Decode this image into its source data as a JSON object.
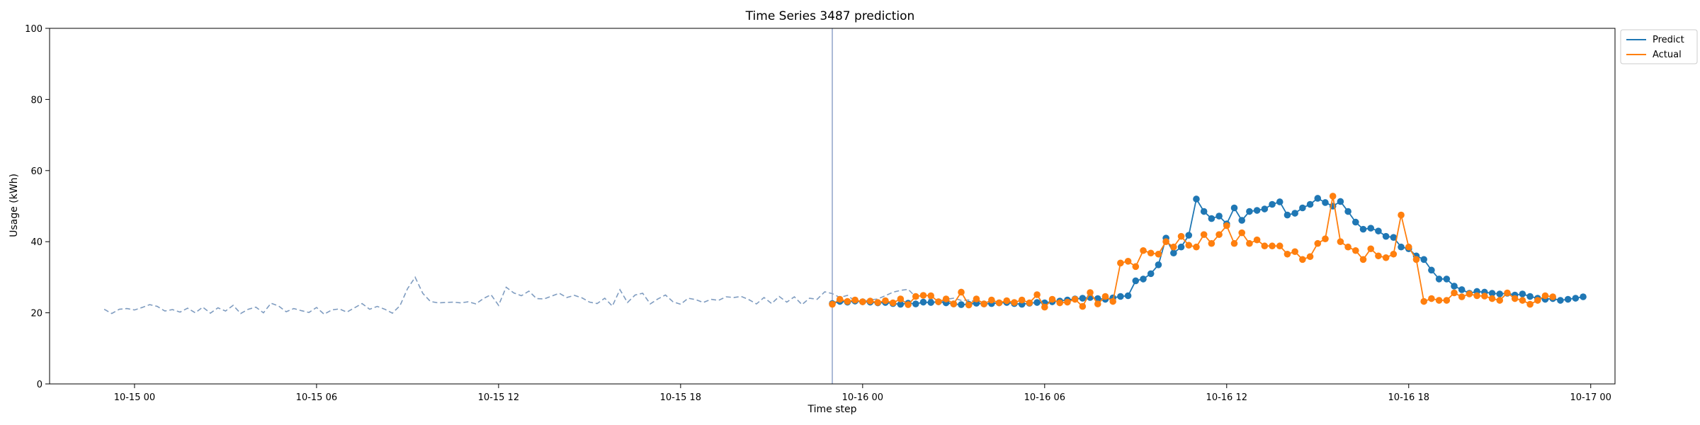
{
  "chart_data": {
    "type": "line",
    "title": "Time Series 3487 prediction",
    "xlabel": "Time step",
    "ylabel": "Usage (kWh)",
    "ylim": [
      0,
      100
    ],
    "xlim": [
      "2023-10-14 21:12",
      "2023-10-17 00:48"
    ],
    "x_ticks": [
      {
        "t": "2023-10-15 00:00",
        "label": "10-15 00"
      },
      {
        "t": "2023-10-15 06:00",
        "label": "10-15 06"
      },
      {
        "t": "2023-10-15 12:00",
        "label": "10-15 12"
      },
      {
        "t": "2023-10-15 18:00",
        "label": "10-15 18"
      },
      {
        "t": "2023-10-16 00:00",
        "label": "10-16 00"
      },
      {
        "t": "2023-10-16 06:00",
        "label": "10-16 06"
      },
      {
        "t": "2023-10-16 12:00",
        "label": "10-16 12"
      },
      {
        "t": "2023-10-16 18:00",
        "label": "10-16 18"
      },
      {
        "t": "2023-10-17 00:00",
        "label": "10-17 00"
      }
    ],
    "y_ticks": [
      0,
      20,
      40,
      60,
      80,
      100
    ],
    "grid": false,
    "legend_position": "outside-top-right",
    "vertical_marker": "2023-10-15 23:00",
    "history": {
      "start": "2023-10-14 23:00",
      "step_minutes": 15,
      "color": "#7f9cc0",
      "values": [
        21.0,
        19.8,
        21.0,
        21.2,
        20.8,
        21.5,
        22.3,
        21.8,
        20.5,
        20.9,
        20.2,
        21.3,
        20.0,
        21.6,
        19.9,
        21.4,
        20.5,
        22.1,
        19.8,
        21.0,
        21.6,
        20.0,
        22.7,
        21.9,
        20.3,
        21.2,
        20.6,
        20.1,
        21.5,
        19.6,
        20.8,
        21.1,
        20.2,
        21.4,
        22.6,
        21.0,
        21.8,
        21.0,
        19.9,
        22.0,
        26.8,
        30.0,
        25.5,
        23.2,
        22.8,
        22.9,
        23.0,
        22.8,
        23.1,
        22.5,
        24.0,
        25.1,
        22.1,
        27.2,
        25.6,
        24.8,
        26.1,
        24.0,
        23.9,
        24.7,
        25.5,
        24.3,
        24.9,
        24.2,
        23.0,
        22.6,
        24.1,
        21.9,
        26.5,
        22.9,
        25.0,
        25.5,
        22.5,
        23.9,
        25.0,
        23.1,
        22.4,
        24.1,
        23.7,
        22.9,
        23.8,
        23.5,
        24.5,
        24.3,
        24.6,
        23.7,
        22.5,
        24.3,
        22.6,
        24.6,
        23.0,
        24.5,
        22.3,
        24.1,
        23.8,
        25.9,
        25.4,
        24.3,
        24.9,
        23.3,
        23.3,
        23.6,
        23.9,
        24.8,
        25.8,
        26.3,
        26.6,
        24.5,
        23.3,
        24.0,
        22.6,
        23.8,
        24.1,
        23.5,
        23.6,
        23.2
      ]
    },
    "forecast_start": "2023-10-15 23:00",
    "forecast_step_minutes": 15,
    "series": [
      {
        "name": "Predict",
        "color": "#1f77b4",
        "values": [
          22.6,
          23.2,
          23.0,
          23.3,
          23.1,
          23.0,
          22.8,
          22.9,
          22.6,
          22.4,
          22.7,
          22.5,
          23.0,
          22.9,
          23.1,
          22.8,
          22.5,
          22.3,
          22.4,
          22.7,
          22.5,
          22.6,
          22.8,
          22.9,
          22.6,
          22.4,
          22.7,
          22.9,
          22.8,
          23.1,
          23.3,
          23.6,
          23.9,
          24.1,
          24.3,
          24.0,
          23.8,
          24.2,
          24.6,
          24.8,
          29.0,
          29.5,
          31.0,
          33.5,
          41.0,
          36.8,
          38.5,
          41.8,
          52.0,
          48.5,
          46.5,
          47.2,
          45.0,
          49.5,
          46.0,
          48.5,
          48.8,
          49.2,
          50.5,
          51.2,
          47.5,
          48.0,
          49.5,
          50.5,
          52.2,
          51.0,
          50.0,
          51.3,
          48.5,
          45.5,
          43.5,
          43.8,
          43.0,
          41.5,
          41.2,
          38.5,
          38.0,
          36.0,
          35.0,
          32.0,
          29.5,
          29.5,
          27.5,
          26.5,
          25.5,
          26.0,
          25.8,
          25.5,
          25.3,
          25.5,
          25.0,
          25.3,
          24.6,
          24.1,
          23.8,
          24.0,
          23.5,
          23.8,
          24.1,
          24.5
        ]
      },
      {
        "name": "Actual",
        "color": "#ff7f0e",
        "values": [
          22.4,
          23.8,
          23.2,
          23.6,
          23.1,
          23.3,
          22.9,
          23.4,
          22.8,
          23.9,
          22.3,
          24.6,
          24.9,
          24.8,
          23.1,
          23.9,
          22.5,
          25.8,
          22.2,
          23.9,
          22.5,
          23.6,
          22.8,
          23.4,
          22.9,
          23.6,
          22.8,
          25.1,
          21.6,
          23.8,
          22.8,
          23.0,
          23.8,
          21.8,
          25.7,
          22.5,
          24.6,
          23.2,
          34.0,
          34.5,
          33.0,
          37.5,
          36.8,
          36.5,
          40.0,
          38.5,
          41.5,
          39.0,
          38.5,
          42.0,
          39.5,
          42.0,
          44.5,
          39.5,
          42.5,
          39.5,
          40.5,
          38.8,
          38.8,
          38.8,
          36.5,
          37.2,
          35.0,
          35.8,
          39.5,
          40.8,
          52.8,
          40.0,
          38.5,
          37.5,
          35.0,
          38.0,
          36.0,
          35.5,
          36.5,
          47.5,
          38.5,
          35.0,
          23.2,
          24.0,
          23.5,
          23.5,
          25.6,
          24.5,
          25.3,
          24.8,
          24.7,
          24.0,
          23.5,
          25.6,
          24.0,
          23.5,
          22.4,
          23.5,
          24.8,
          24.5
        ]
      }
    ]
  }
}
